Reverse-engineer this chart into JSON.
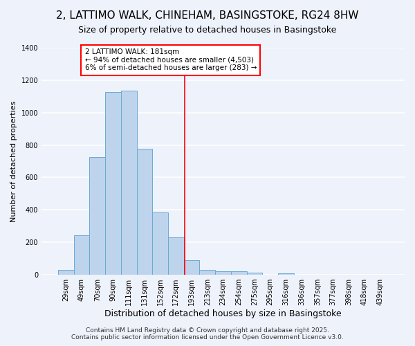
{
  "title": "2, LATTIMO WALK, CHINEHAM, BASINGSTOKE, RG24 8HW",
  "subtitle": "Size of property relative to detached houses in Basingstoke",
  "xlabel": "Distribution of detached houses by size in Basingstoke",
  "ylabel": "Number of detached properties",
  "bar_labels": [
    "29sqm",
    "49sqm",
    "70sqm",
    "90sqm",
    "111sqm",
    "131sqm",
    "152sqm",
    "172sqm",
    "193sqm",
    "213sqm",
    "234sqm",
    "254sqm",
    "275sqm",
    "295sqm",
    "316sqm",
    "336sqm",
    "357sqm",
    "377sqm",
    "398sqm",
    "418sqm",
    "439sqm"
  ],
  "bar_values": [
    30,
    245,
    725,
    1125,
    1135,
    775,
    385,
    230,
    90,
    30,
    22,
    20,
    15,
    0,
    8,
    0,
    0,
    0,
    0,
    0,
    0
  ],
  "bar_color": "#bdd4ec",
  "bar_edge_color": "#6aaad4",
  "vline_x": 7.55,
  "vline_color": "red",
  "annotation_title": "2 LATTIMO WALK: 181sqm",
  "annotation_line1": "← 94% of detached houses are smaller (4,503)",
  "annotation_line2": "6% of semi-detached houses are larger (283) →",
  "annotation_box_color": "white",
  "annotation_box_edge_color": "red",
  "ylim": [
    0,
    1400
  ],
  "yticks": [
    0,
    200,
    400,
    600,
    800,
    1000,
    1200,
    1400
  ],
  "background_color": "#eef2fb",
  "grid_color": "white",
  "footer1": "Contains HM Land Registry data © Crown copyright and database right 2025.",
  "footer2": "Contains public sector information licensed under the Open Government Licence v3.0.",
  "title_fontsize": 11,
  "subtitle_fontsize": 9,
  "xlabel_fontsize": 9,
  "ylabel_fontsize": 8,
  "tick_fontsize": 7,
  "annotation_fontsize": 7.5,
  "footer_fontsize": 6.5
}
